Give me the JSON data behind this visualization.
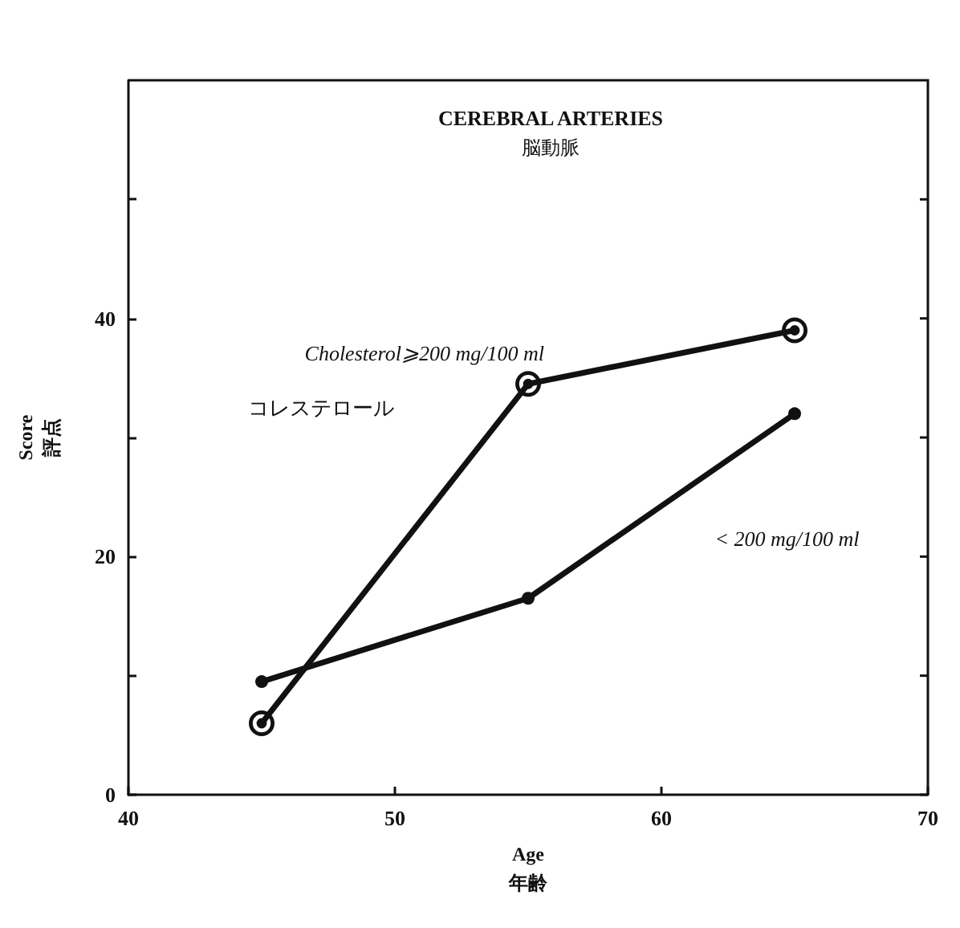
{
  "chart_data": {
    "type": "line",
    "title": "CEREBRAL ARTERIES",
    "subtitle": "脳動脈",
    "xlabel": "Age\n年齢",
    "ylabel": "Score\n評点",
    "annotations": [
      "コレステロール"
    ],
    "x": [
      45,
      55,
      65
    ],
    "series": [
      {
        "name": "Cholesterol⩾200 mg/100 ml",
        "color": "#111111",
        "values": [
          6,
          34.5,
          39
        ]
      },
      {
        "name": "< 200 mg/100 ml",
        "color": "#111111",
        "values": [
          9.5,
          16.5,
          32
        ]
      }
    ],
    "xlim": [
      40,
      70
    ],
    "xticks": [
      40,
      50,
      60,
      70
    ],
    "ylim": [
      0,
      60
    ],
    "yticks": [
      0,
      {
        "value": 10,
        "label": null
      },
      20,
      {
        "value": 30,
        "label": null
      },
      40,
      {
        "value": 50,
        "label": null
      }
    ],
    "marker": "circle",
    "line_style": "solid",
    "grid": false,
    "legend": false
  }
}
